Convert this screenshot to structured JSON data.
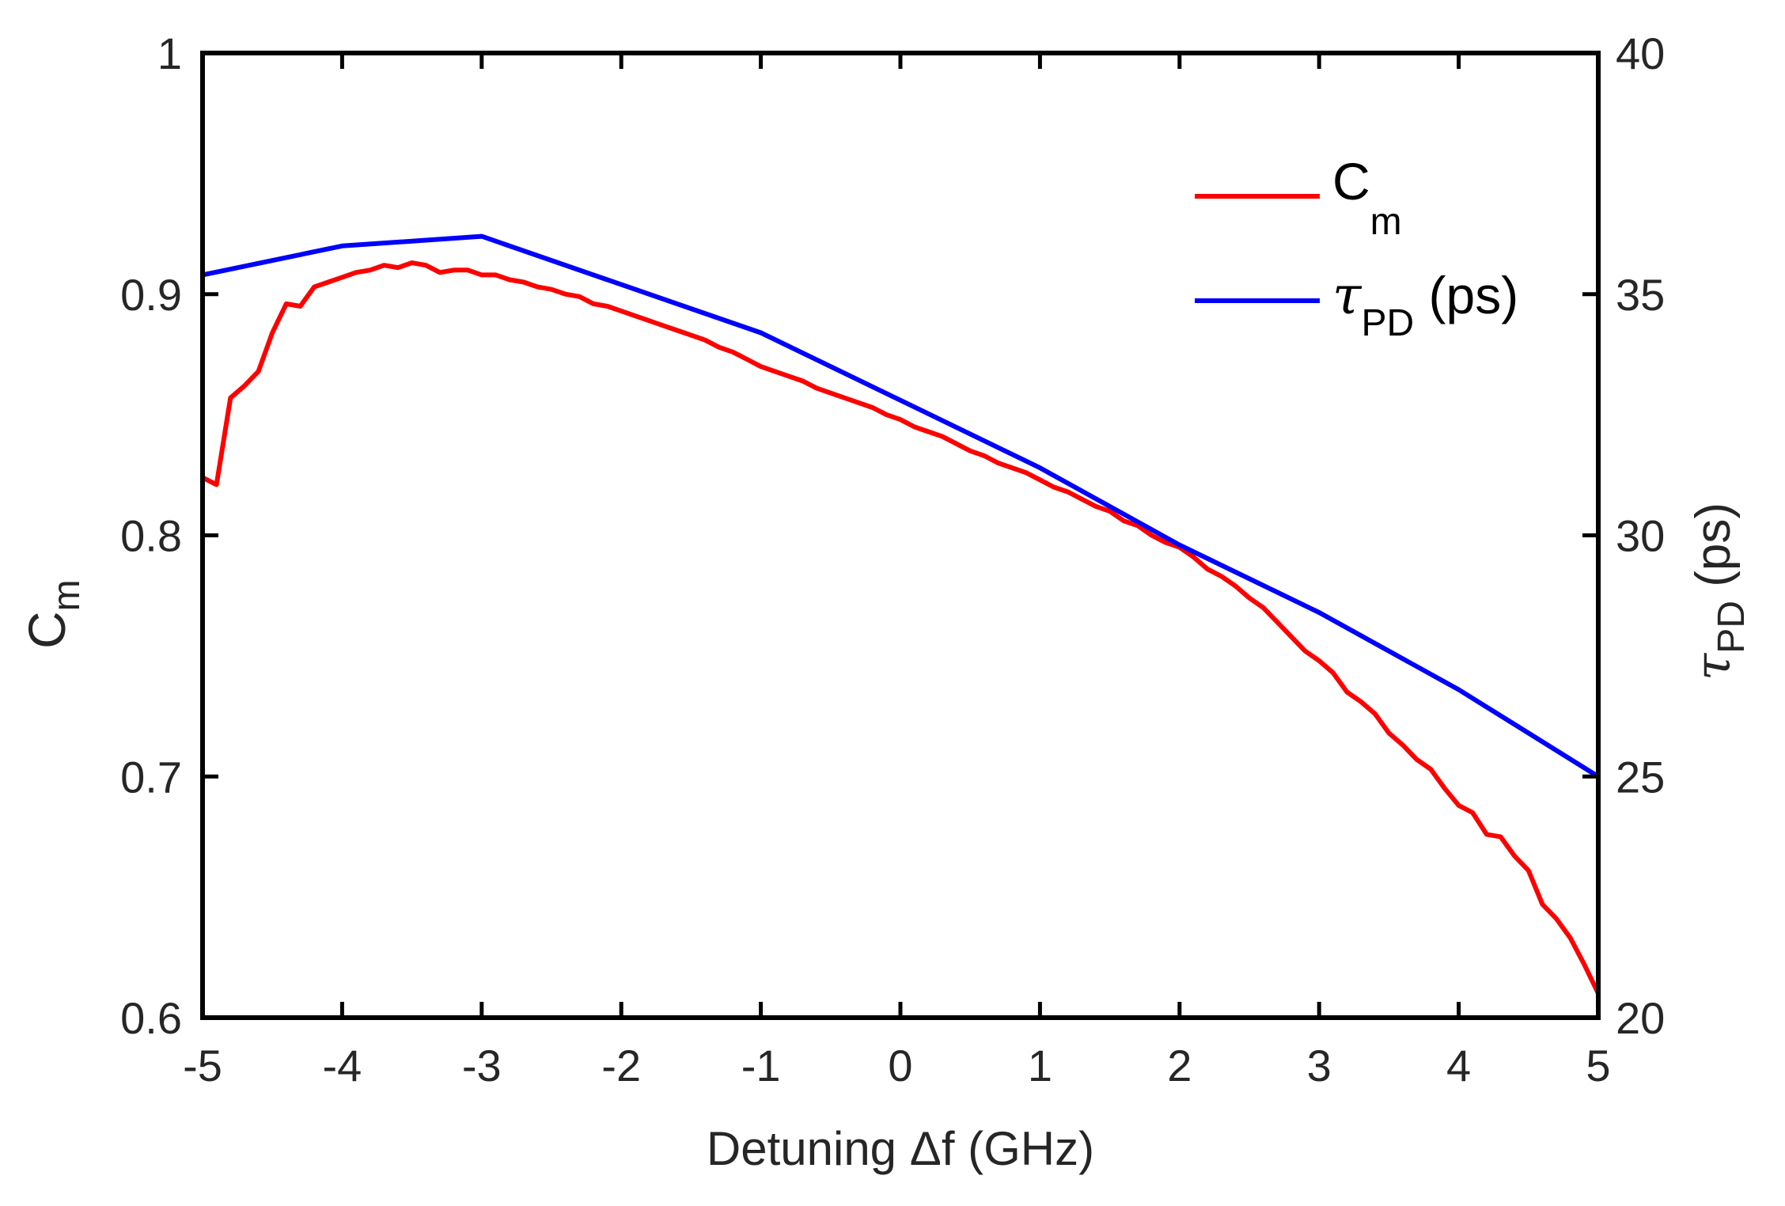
{
  "chart_data": {
    "type": "line",
    "title": "",
    "xlabel": {
      "prefix": "Detuning ",
      "delta": "Δ",
      "rest": "f (GHz)"
    },
    "ylabel_left": {
      "main": "C",
      "sub": "m"
    },
    "ylabel_right": {
      "sym": "τ",
      "sub": "PD",
      "unit": " (ps)"
    },
    "xlim": [
      -5,
      5
    ],
    "ylim_left": [
      0.6,
      1
    ],
    "ylim_right": [
      20,
      40
    ],
    "x_ticks": [
      -5,
      -4,
      -3,
      -2,
      -1,
      0,
      1,
      2,
      3,
      4,
      5
    ],
    "x_tick_labels": [
      "-5",
      "-4",
      "-3",
      "-2",
      "-1",
      "0",
      "1",
      "2",
      "3",
      "4",
      "5"
    ],
    "y_left_ticks": [
      0.6,
      0.7,
      0.8,
      0.9,
      1
    ],
    "y_left_tick_labels": [
      "0.6",
      "0.7",
      "0.8",
      "0.9",
      "1"
    ],
    "y_right_ticks": [
      20,
      25,
      30,
      35,
      40
    ],
    "y_right_tick_labels": [
      "20",
      "25",
      "30",
      "35",
      "40"
    ],
    "legend_position": "top-right",
    "legend": [
      {
        "main": "C",
        "sub": "m",
        "unit": "",
        "is_symbol": false
      },
      {
        "main": "τ",
        "sub": "PD",
        "unit": " (ps)",
        "is_symbol": true
      }
    ],
    "series": [
      {
        "name": "Cm",
        "axis": "left",
        "color": "#ff0000",
        "x": [
          -5.0,
          -4.9,
          -4.8,
          -4.7,
          -4.6,
          -4.5,
          -4.4,
          -4.3,
          -4.2,
          -4.1,
          -4.0,
          -3.9,
          -3.8,
          -3.7,
          -3.6,
          -3.5,
          -3.4,
          -3.3,
          -3.2,
          -3.1,
          -3.0,
          -2.9,
          -2.8,
          -2.7,
          -2.6,
          -2.5,
          -2.4,
          -2.3,
          -2.2,
          -2.1,
          -2.0,
          -1.9,
          -1.8,
          -1.7,
          -1.6,
          -1.5,
          -1.4,
          -1.3,
          -1.2,
          -1.1,
          -1.0,
          -0.9,
          -0.8,
          -0.7,
          -0.6,
          -0.5,
          -0.4,
          -0.3,
          -0.2,
          -0.1,
          0.0,
          0.1,
          0.2,
          0.3,
          0.4,
          0.5,
          0.6,
          0.7,
          0.8,
          0.9,
          1.0,
          1.1,
          1.2,
          1.3,
          1.4,
          1.5,
          1.6,
          1.7,
          1.8,
          1.9,
          2.0,
          2.1,
          2.2,
          2.3,
          2.4,
          2.5,
          2.6,
          2.7,
          2.8,
          2.9,
          3.0,
          3.1,
          3.2,
          3.3,
          3.4,
          3.5,
          3.6,
          3.7,
          3.8,
          3.9,
          4.0,
          4.1,
          4.2,
          4.3,
          4.4,
          4.5,
          4.6,
          4.7,
          4.8,
          4.9,
          5.0
        ],
        "y": [
          0.824,
          0.821,
          0.857,
          0.862,
          0.868,
          0.884,
          0.896,
          0.895,
          0.903,
          0.905,
          0.907,
          0.909,
          0.91,
          0.912,
          0.911,
          0.913,
          0.912,
          0.909,
          0.91,
          0.91,
          0.908,
          0.908,
          0.906,
          0.905,
          0.903,
          0.902,
          0.9,
          0.899,
          0.896,
          0.895,
          0.893,
          0.891,
          0.889,
          0.887,
          0.885,
          0.883,
          0.881,
          0.878,
          0.876,
          0.873,
          0.87,
          0.868,
          0.866,
          0.864,
          0.861,
          0.859,
          0.857,
          0.855,
          0.853,
          0.85,
          0.848,
          0.845,
          0.843,
          0.841,
          0.838,
          0.835,
          0.833,
          0.83,
          0.828,
          0.826,
          0.823,
          0.82,
          0.818,
          0.815,
          0.812,
          0.81,
          0.806,
          0.804,
          0.8,
          0.797,
          0.795,
          0.791,
          0.786,
          0.783,
          0.779,
          0.774,
          0.77,
          0.764,
          0.758,
          0.752,
          0.748,
          0.743,
          0.735,
          0.731,
          0.726,
          0.718,
          0.713,
          0.707,
          0.703,
          0.695,
          0.688,
          0.685,
          0.676,
          0.675,
          0.667,
          0.661,
          0.647,
          0.641,
          0.633,
          0.622,
          0.61
        ]
      },
      {
        "name": "τPD (ps)",
        "axis": "right",
        "color": "#0000ff",
        "x": [
          -5,
          -4,
          -3,
          -2,
          -1,
          0,
          1,
          2,
          3,
          4,
          5
        ],
        "y": [
          35.4,
          36.0,
          36.2,
          35.2,
          34.2,
          32.8,
          31.4,
          29.8,
          28.4,
          26.8,
          25.0
        ]
      }
    ]
  }
}
